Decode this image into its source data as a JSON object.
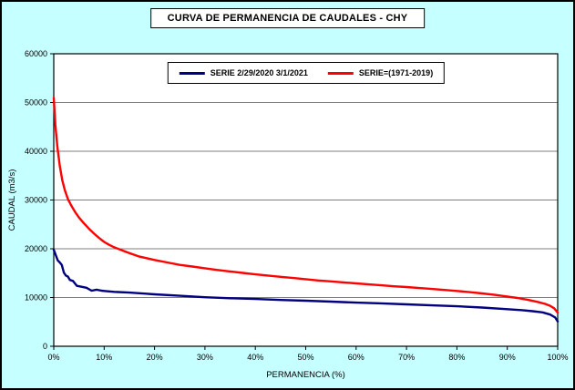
{
  "frame": {
    "background": "#C6FFFF",
    "border_color": "#000000",
    "plot_background": "#FFFFFF"
  },
  "chart_data": {
    "type": "line",
    "title": "CURVA DE PERMANENCIA DE CAUDALES - CHY",
    "xlabel": "PERMANENCIA (%)",
    "ylabel": "CAUDAL (m3/s)",
    "xlim": [
      0,
      100
    ],
    "ylim": [
      0,
      60000
    ],
    "x_tick_values": [
      0,
      10,
      20,
      30,
      40,
      50,
      60,
      70,
      80,
      90,
      100
    ],
    "x_tick_labels": [
      "0%",
      "10%",
      "20%",
      "30%",
      "40%",
      "50%",
      "60%",
      "70%",
      "80%",
      "90%",
      "100%"
    ],
    "y_tick_values": [
      0,
      10000,
      20000,
      30000,
      40000,
      50000,
      60000
    ],
    "y_tick_labels": [
      "0",
      "10000",
      "20000",
      "30000",
      "40000",
      "50000",
      "60000"
    ],
    "grid": "horizontal",
    "legend_position": "top-center-inside",
    "series": [
      {
        "name": "SERIE 2/29/2020 3/1/2021",
        "color": "#000080",
        "x": [
          0,
          0.4,
          0.8,
          1.2,
          1.6,
          2.0,
          2.4,
          2.8,
          3.2,
          3.8,
          4.2,
          4.6,
          5.5,
          6.5,
          7.5,
          8.5,
          9.5,
          10,
          12,
          15,
          18,
          20,
          25,
          30,
          35,
          40,
          45,
          50,
          55,
          60,
          65,
          70,
          75,
          80,
          85,
          90,
          93,
          95,
          97,
          98.5,
          99.5,
          100
        ],
        "y": [
          19800,
          18700,
          17600,
          17200,
          16700,
          15100,
          14500,
          14300,
          13600,
          13400,
          12900,
          12400,
          12200,
          12000,
          11400,
          11600,
          11400,
          11350,
          11150,
          11000,
          10800,
          10650,
          10350,
          10050,
          9850,
          9700,
          9500,
          9350,
          9150,
          8950,
          8800,
          8600,
          8400,
          8200,
          7950,
          7600,
          7400,
          7200,
          6950,
          6500,
          5900,
          5100
        ]
      },
      {
        "name": "SERIE=(1971-2019)",
        "color": "#FF0000",
        "x": [
          0,
          0.3,
          0.7,
          1.2,
          1.7,
          2.2,
          2.8,
          3.5,
          4.2,
          5,
          6,
          7,
          8,
          9,
          10,
          11,
          12,
          13.5,
          15,
          17,
          20,
          22.5,
          25,
          27.5,
          30,
          32.5,
          35,
          37.5,
          40,
          42.5,
          45,
          47.5,
          50,
          52.5,
          55,
          57.5,
          60,
          62.5,
          65,
          67.5,
          70,
          72.5,
          75,
          77.5,
          80,
          82.5,
          85,
          87.5,
          90,
          92,
          94,
          96,
          97.5,
          98.5,
          99.3,
          100
        ],
        "y": [
          51000,
          45500,
          41000,
          37000,
          34000,
          32000,
          30200,
          28800,
          27600,
          26400,
          25200,
          24100,
          23100,
          22200,
          21400,
          20800,
          20300,
          19700,
          19100,
          18400,
          17700,
          17200,
          16700,
          16350,
          16000,
          15650,
          15350,
          15050,
          14750,
          14500,
          14250,
          14000,
          13750,
          13500,
          13300,
          13100,
          12900,
          12700,
          12500,
          12300,
          12150,
          11950,
          11750,
          11550,
          11350,
          11100,
          10850,
          10550,
          10200,
          9900,
          9550,
          9100,
          8700,
          8300,
          7800,
          6900
        ]
      }
    ]
  }
}
